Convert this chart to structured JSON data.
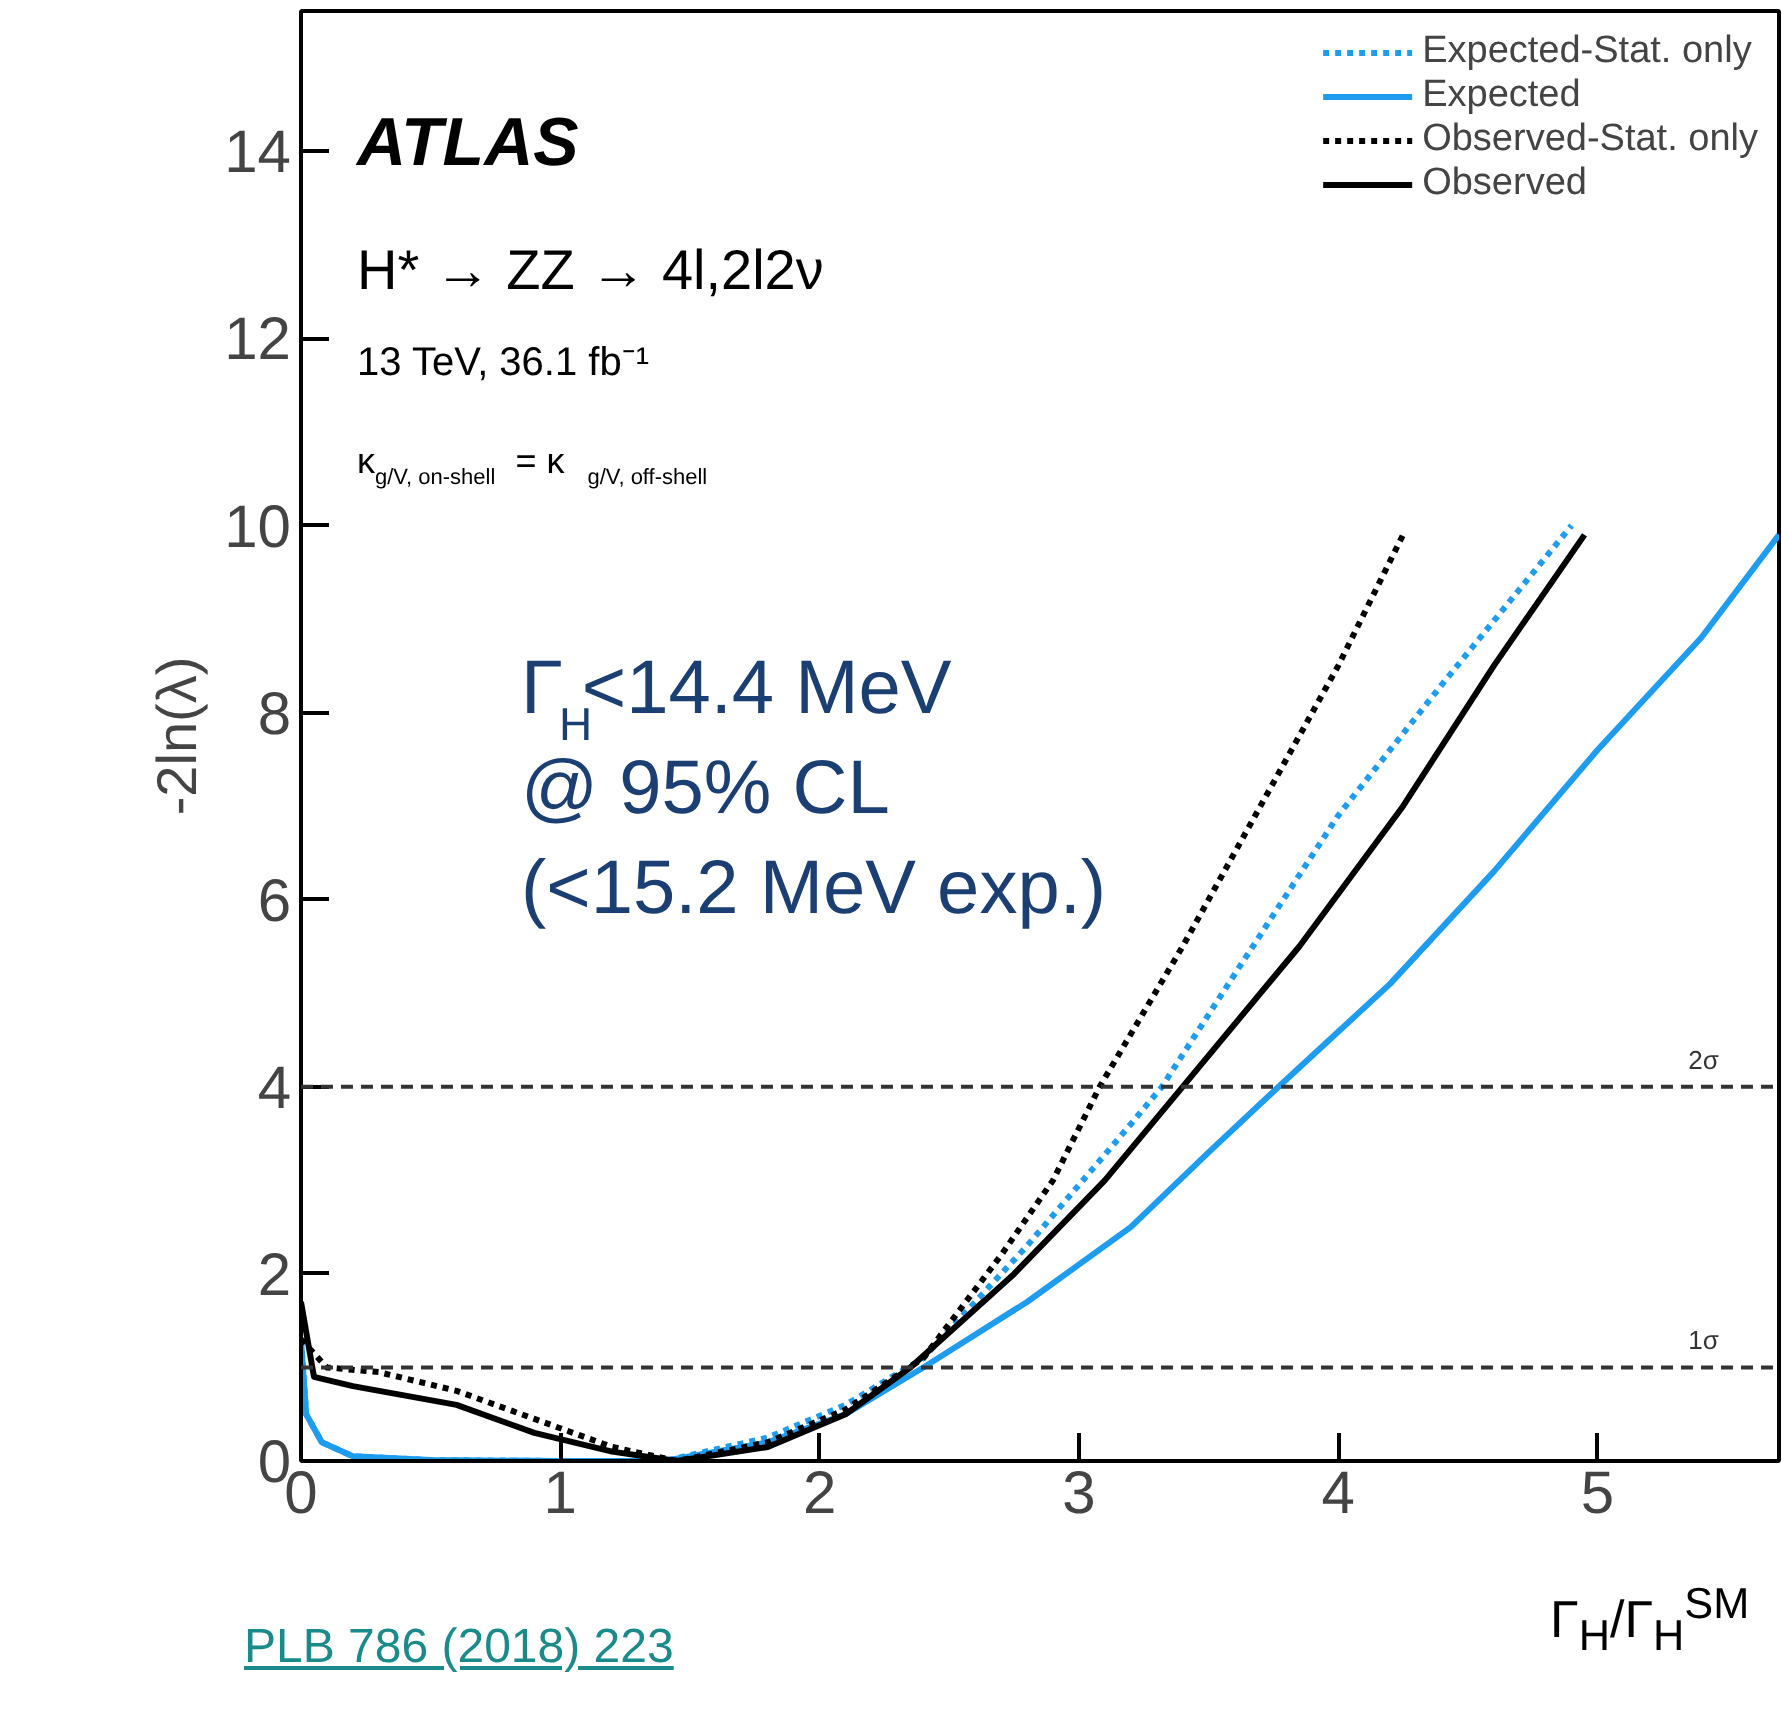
{
  "chart_data": {
    "type": "line",
    "xlabel": "Γ$_{H}$/Γ$_{H}$$^{SM}$",
    "ylabel": "-2ln(λ)",
    "xlim": [
      0,
      5.7
    ],
    "ylim": [
      0,
      15.5
    ],
    "xticks": [
      0,
      1,
      2,
      3,
      4,
      5
    ],
    "yticks": [
      0,
      2,
      4,
      6,
      8,
      10,
      12,
      14
    ],
    "grid": false,
    "legend": "top right",
    "marker": "none",
    "series": [
      {
        "name": "Expected-Stat. only",
        "color": "#1e9cf0",
        "line_style": "dotted",
        "x": [
          0,
          0.02,
          0.08,
          0.2,
          0.5,
          1.0,
          1.4,
          1.8,
          2.1,
          2.4,
          2.8,
          3.2,
          3.32,
          3.6,
          4.0,
          4.4,
          4.9
        ],
        "values": [
          1.3,
          0.5,
          0.2,
          0.05,
          0.01,
          0.0,
          0,
          0.25,
          0.6,
          1.1,
          2.3,
          3.6,
          4.0,
          5.2,
          6.9,
          8.3,
          10.0
        ]
      },
      {
        "name": "Expected",
        "color": "#1e9cf0",
        "line_style": "solid",
        "x": [
          0,
          0.02,
          0.08,
          0.2,
          0.5,
          1.0,
          1.4,
          1.8,
          2.1,
          2.4,
          2.8,
          3.2,
          3.5,
          3.77,
          4.2,
          4.6,
          5.0,
          5.4,
          5.7
        ],
        "values": [
          1.3,
          0.5,
          0.2,
          0.05,
          0.01,
          0.0,
          0,
          0.2,
          0.5,
          1.0,
          1.7,
          2.5,
          3.3,
          4.0,
          5.1,
          6.3,
          7.6,
          8.8,
          9.9
        ]
      },
      {
        "name": "Observed-Stat. only",
        "color": "#000000",
        "line_style": "dotted",
        "x": [
          0,
          0.1,
          0.3,
          0.6,
          0.9,
          1.2,
          1.45,
          1.8,
          2.1,
          2.4,
          2.7,
          2.9,
          3.08,
          3.4,
          3.7,
          4.0,
          4.25
        ],
        "values": [
          1.3,
          1.0,
          0.95,
          0.75,
          0.45,
          0.15,
          0,
          0.2,
          0.55,
          1.1,
          2.2,
          3.0,
          4.0,
          5.5,
          7.0,
          8.5,
          9.9
        ]
      },
      {
        "name": "Observed",
        "color": "#000000",
        "line_style": "solid",
        "x": [
          0,
          0.05,
          0.2,
          0.6,
          0.9,
          1.2,
          1.45,
          1.8,
          2.1,
          2.35,
          2.75,
          3.1,
          3.4,
          3.85,
          4.25,
          4.6,
          4.95
        ],
        "values": [
          1.7,
          0.9,
          0.8,
          0.6,
          0.3,
          0.1,
          0,
          0.15,
          0.5,
          1.0,
          2.0,
          3.0,
          4.0,
          5.5,
          7.0,
          8.5,
          9.9
        ]
      }
    ],
    "ref_lines": [
      {
        "axis": "y",
        "value": 4,
        "label": "2σ",
        "line_style": "dashed",
        "color": "#333333"
      },
      {
        "axis": "y",
        "value": 1,
        "label": "1σ",
        "line_style": "dashed",
        "color": "#333333"
      }
    ],
    "annotations": [
      "ATLAS",
      "H* → ZZ → 4l,2l2ν",
      "13 TeV, 36.1 fb⁻¹",
      "κ$_{g/V, on-shell}$ = κ$_{g/V, off-shell}$",
      "Γ$_{H}$<14.4 MeV",
      "@ 95% CL",
      "(<15.2 MeV exp.)",
      "PLB 786 (2018) 223"
    ]
  }
}
